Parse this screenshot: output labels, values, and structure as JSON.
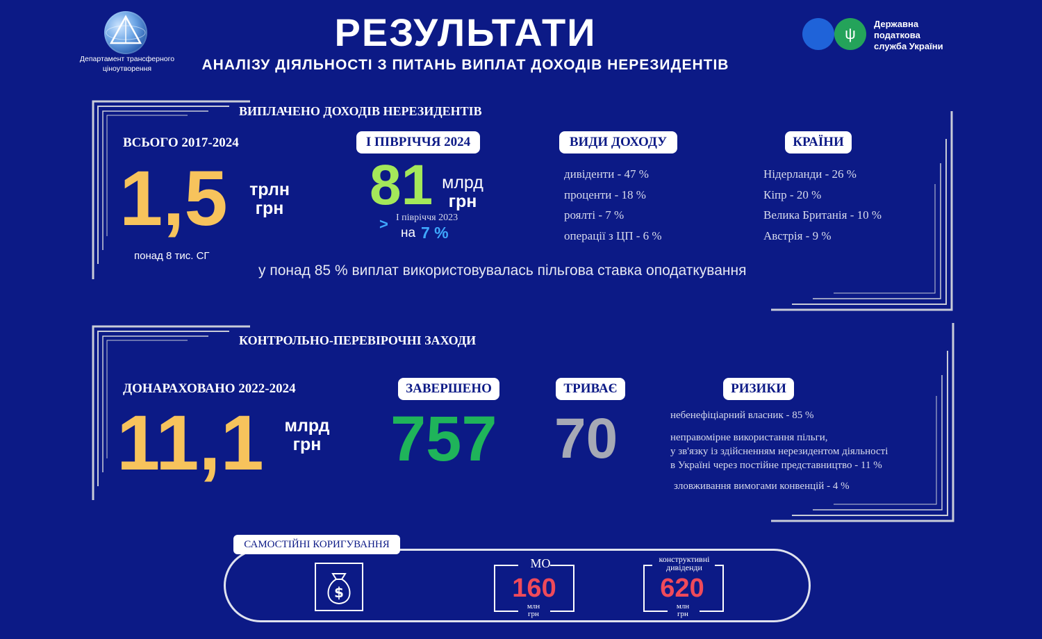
{
  "header": {
    "dept_line1": "Департамент трансферного",
    "dept_line2": "ціноутворення",
    "title": "РЕЗУЛЬТАТИ",
    "subtitle": "АНАЛІЗУ ДІЯЛЬНОСТІ З ПИТАНЬ ВИПЛАТ ДОХОДІВ НЕРЕЗИДЕНТІВ",
    "agency_line1": "Державна",
    "agency_line2": "податкова",
    "agency_line3": "служба України",
    "agency_emblem": "trident-icon"
  },
  "payments": {
    "section_title": "ВИПЛАЧЕНО ДОХОДІВ НЕРЕЗИДЕНТІВ",
    "total_label": "ВСЬОГО 2017-2024",
    "total_value": "1,5",
    "total_unit1": "трлн",
    "total_unit2": "грн",
    "total_note": "понад 8  тис. СГ",
    "half_label": "І ПІВРІЧЧЯ 2024",
    "half_value": "81",
    "half_unit1": "млрд",
    "half_unit2": "грн",
    "compare_sign": ">",
    "compare_label": "І півріччя 2023",
    "compare_prefix": "на",
    "compare_value": "7 %",
    "income_types_label": "ВИДИ ДОХОДУ",
    "income_types": [
      "дивіденти - 47 %",
      "проценти - 18 %",
      "роялті - 7 %",
      "операції з ЦП - 6 %"
    ],
    "countries_label": "КРАЇНИ",
    "countries": [
      "Нідерланди - 26 %",
      "Кіпр - 20 %",
      "Велика Британія - 10 %",
      "Австрія - 9 %"
    ],
    "footnote": "у понад 85 % виплат використовувалась пільгова ставка оподаткування"
  },
  "audits": {
    "section_title": "КОНТРОЛЬНО-ПЕРЕВІРОЧНІ ЗАХОДИ",
    "assessed_label": "ДОНАРАХОВАНО 2022-2024",
    "assessed_value": "11,1",
    "assessed_unit1": "млрд",
    "assessed_unit2": "грн",
    "completed_label": "ЗАВЕРШЕНО",
    "completed_value": "757",
    "ongoing_label": "ТРИВАЄ",
    "ongoing_value": "70",
    "risks_label": "РИЗИКИ",
    "risk1": "небенефіціарний власник - 85 %",
    "risk2_line1": "неправомірне використання пільги,",
    "risk2_line2": "у зв'язку із здійсненням нерезидентом діяльності",
    "risk2_line3": "в Україні через постійне представництво - 11 %",
    "risk3": "зловживання вимогами конвенцій - 4 %",
    "colors": {
      "completed": "#1fb45a",
      "ongoing": "#a6a9b5",
      "accent": "#f7c35c",
      "growth": "#a4e85a"
    }
  },
  "adjustments": {
    "label": "САМОСТІЙНІ КОРИГУВАННЯ",
    "icon": "money-bag-icon",
    "mo_label": "МО",
    "mo_value": "160",
    "mo_unit1": "млн",
    "mo_unit2": "грн",
    "div_label1": "конструктивні",
    "div_label2": "дивіденди",
    "div_value": "620",
    "div_unit1": "млн",
    "div_unit2": "грн",
    "value_color": "#ef4a5a"
  }
}
